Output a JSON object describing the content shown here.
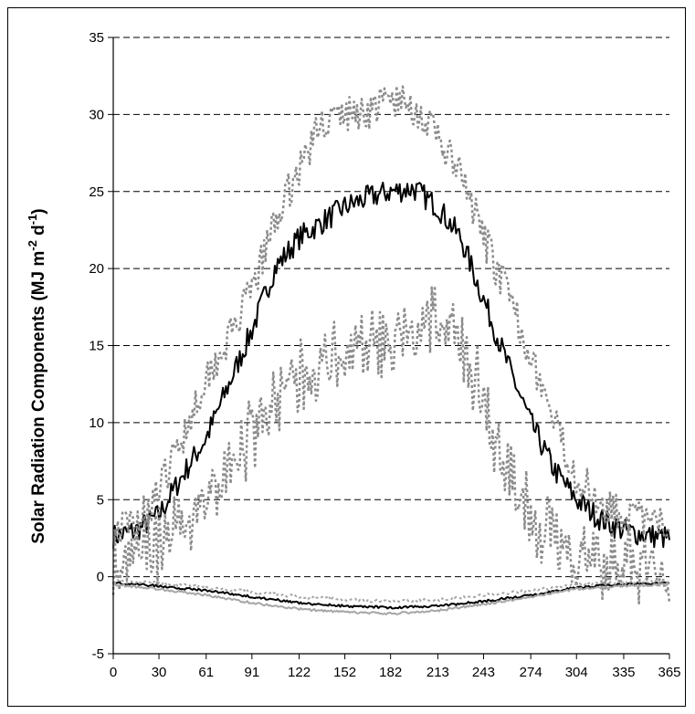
{
  "chart_data": {
    "type": "line",
    "title": "",
    "xlabel": "",
    "ylabel": "Solar Radiation Components (MJ m-2 d-1)",
    "ylabel_parts": {
      "main": "Solar Radiation Components (MJ m",
      "exp1": "-2",
      "mid": " d",
      "exp2": "-1",
      "end": ")"
    },
    "xlim": [
      0,
      365
    ],
    "ylim": [
      -5,
      35
    ],
    "x_ticks": [
      0,
      30,
      61,
      91,
      122,
      152,
      182,
      213,
      243,
      274,
      304,
      335,
      365
    ],
    "y_ticks": [
      -5,
      0,
      5,
      10,
      15,
      20,
      25,
      30,
      35
    ],
    "grid": "horizontal dashed",
    "legend": "none",
    "colors": {
      "black": "#000000",
      "gray": "#8c8c8c",
      "lightgray": "#a6a6a6"
    },
    "series": [
      {
        "style": "solid-black",
        "x": [
          0,
          15,
          30,
          45,
          61,
          76,
          91,
          106,
          122,
          137,
          152,
          167,
          182,
          197,
          213,
          228,
          243,
          258,
          274,
          289,
          304,
          319,
          335,
          350,
          365
        ],
        "values": [
          2.6,
          3.0,
          4.0,
          6.5,
          9.0,
          12.5,
          16.0,
          20.0,
          22.0,
          23.0,
          24.0,
          24.6,
          25.0,
          25.2,
          24.0,
          22.0,
          18.0,
          14.0,
          10.0,
          7.0,
          5.0,
          3.8,
          3.0,
          2.7,
          2.5
        ]
      },
      {
        "style": "dotted-gray-upper",
        "x": [
          0,
          15,
          30,
          45,
          61,
          76,
          91,
          106,
          122,
          137,
          152,
          167,
          182,
          197,
          213,
          228,
          243,
          258,
          274,
          289,
          304,
          319,
          335,
          350,
          365
        ],
        "values": [
          3.0,
          3.5,
          5.5,
          9.0,
          13.0,
          15.5,
          18.5,
          23.0,
          26.5,
          29.5,
          30.0,
          30.2,
          31.0,
          30.5,
          28.5,
          26.0,
          22.0,
          18.5,
          14.5,
          10.0,
          6.5,
          5.0,
          4.0,
          3.6,
          3.2
        ]
      },
      {
        "style": "dotted-gray-lower",
        "x": [
          0,
          15,
          30,
          45,
          61,
          76,
          91,
          106,
          122,
          137,
          152,
          167,
          182,
          197,
          213,
          228,
          243,
          258,
          274,
          289,
          304,
          319,
          335,
          350,
          365
        ],
        "values": [
          1.8,
          2.0,
          3.0,
          4.0,
          6.0,
          8.0,
          10.0,
          12.0,
          14.0,
          15.0,
          15.5,
          16.0,
          16.0,
          17.0,
          18.0,
          16.0,
          12.5,
          8.0,
          5.0,
          3.0,
          2.5,
          2.0,
          1.8,
          1.6,
          1.5
        ]
      },
      {
        "style": "solid-black-negative",
        "x": [
          0,
          30,
          61,
          91,
          122,
          152,
          182,
          213,
          243,
          274,
          304,
          335,
          365
        ],
        "values": [
          -0.4,
          -0.6,
          -0.9,
          -1.3,
          -1.7,
          -1.9,
          -2.0,
          -1.9,
          -1.6,
          -1.2,
          -0.7,
          -0.5,
          -0.4
        ]
      },
      {
        "style": "solid-gray-negative",
        "x": [
          0,
          30,
          61,
          91,
          122,
          152,
          182,
          213,
          243,
          274,
          304,
          335,
          365
        ],
        "values": [
          -0.5,
          -0.8,
          -1.2,
          -1.7,
          -2.1,
          -2.3,
          -2.4,
          -2.2,
          -1.8,
          -1.3,
          -0.8,
          -0.6,
          -0.5
        ]
      },
      {
        "style": "dotted-gray-negative",
        "x": [
          0,
          30,
          61,
          91,
          122,
          152,
          182,
          213,
          243,
          274,
          304,
          335,
          365
        ],
        "values": [
          -0.3,
          -0.4,
          -0.7,
          -1.0,
          -1.3,
          -1.5,
          -1.6,
          -1.5,
          -1.2,
          -0.9,
          -0.5,
          -0.4,
          -0.3
        ]
      }
    ]
  }
}
